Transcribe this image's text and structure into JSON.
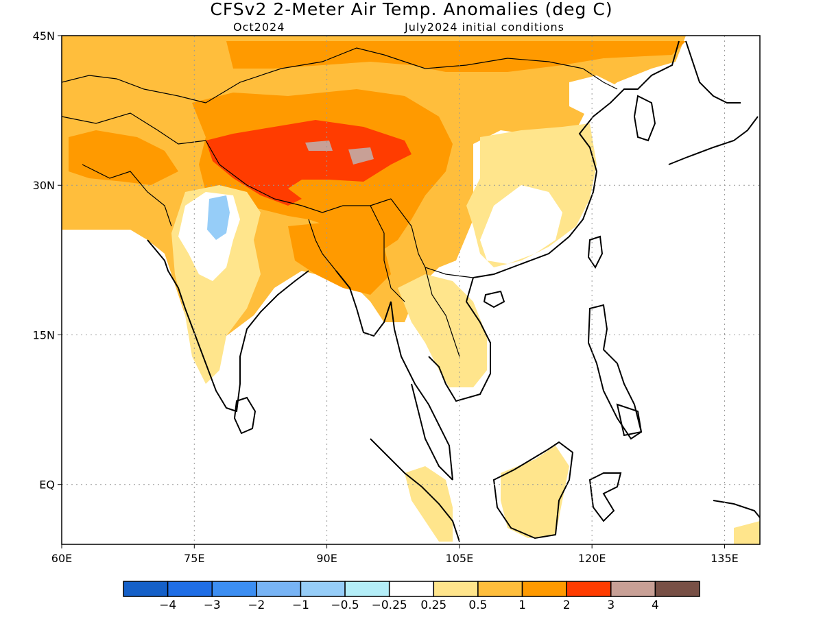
{
  "header": {
    "title": "CFSv2 2-Meter Air Temp. Anomalies (deg C)",
    "valid_month": "Oct2024",
    "init_conditions": "July2024 initial conditions"
  },
  "map": {
    "lon_range": [
      60,
      139
    ],
    "lat_range": [
      -6,
      45
    ],
    "lon_ticks": [
      "60E",
      "75E",
      "90E",
      "105E",
      "120E",
      "135E"
    ],
    "lat_ticks": [
      "45N",
      "30N",
      "15N",
      "EQ"
    ],
    "gridlines": "dotted"
  },
  "colorbar": {
    "colors": [
      "#1560c8",
      "#1f6ee6",
      "#3c8ef2",
      "#78b4f5",
      "#96cdf8",
      "#b4eef8",
      "#ffffff",
      "#ffe58c",
      "#ffbe3c",
      "#ff9a00",
      "#ff3c00",
      "#c8a096",
      "#785046"
    ],
    "labels": [
      "-4",
      "-3",
      "-2",
      "-1",
      "-0.5",
      "-0.25",
      "0.25",
      "0.5",
      "1",
      "2",
      "3",
      "4"
    ]
  }
}
